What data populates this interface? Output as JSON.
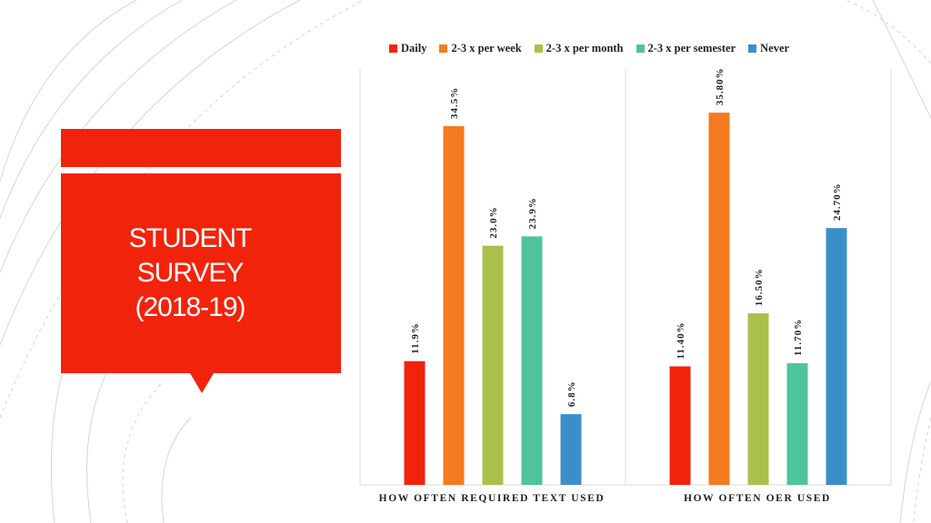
{
  "title": {
    "line1": "STUDENT",
    "line2": "SURVEY",
    "line3": "(2018-19)"
  },
  "colors": {
    "accent": "#f2230b"
  },
  "chart_data": {
    "type": "bar",
    "categories": [
      "HOW OFTEN REQUIRED TEXT USED",
      "HOW OFTEN OER USED"
    ],
    "series": [
      {
        "name": "Daily",
        "color": "#f2230b",
        "values": [
          11.9,
          11.4
        ],
        "labels": [
          "11.9%",
          "11.40%"
        ]
      },
      {
        "name": "2-3 x per week",
        "color": "#f47b20",
        "values": [
          34.5,
          35.8
        ],
        "labels": [
          "34.5%",
          "35.80%"
        ]
      },
      {
        "name": "2-3 x per month",
        "color": "#a9c14a",
        "values": [
          23.0,
          16.5
        ],
        "labels": [
          "23.0%",
          "16.50%"
        ]
      },
      {
        "name": "2-3 x per semester",
        "color": "#4fc49b",
        "values": [
          23.9,
          11.7
        ],
        "labels": [
          "23.9%",
          "11.70%"
        ]
      },
      {
        "name": "Never",
        "color": "#3b8fc9",
        "values": [
          6.8,
          24.7
        ],
        "labels": [
          "6.8%",
          "24.70%"
        ]
      }
    ],
    "ylim": [
      0,
      40
    ],
    "legend_position": "top",
    "grid": false
  }
}
